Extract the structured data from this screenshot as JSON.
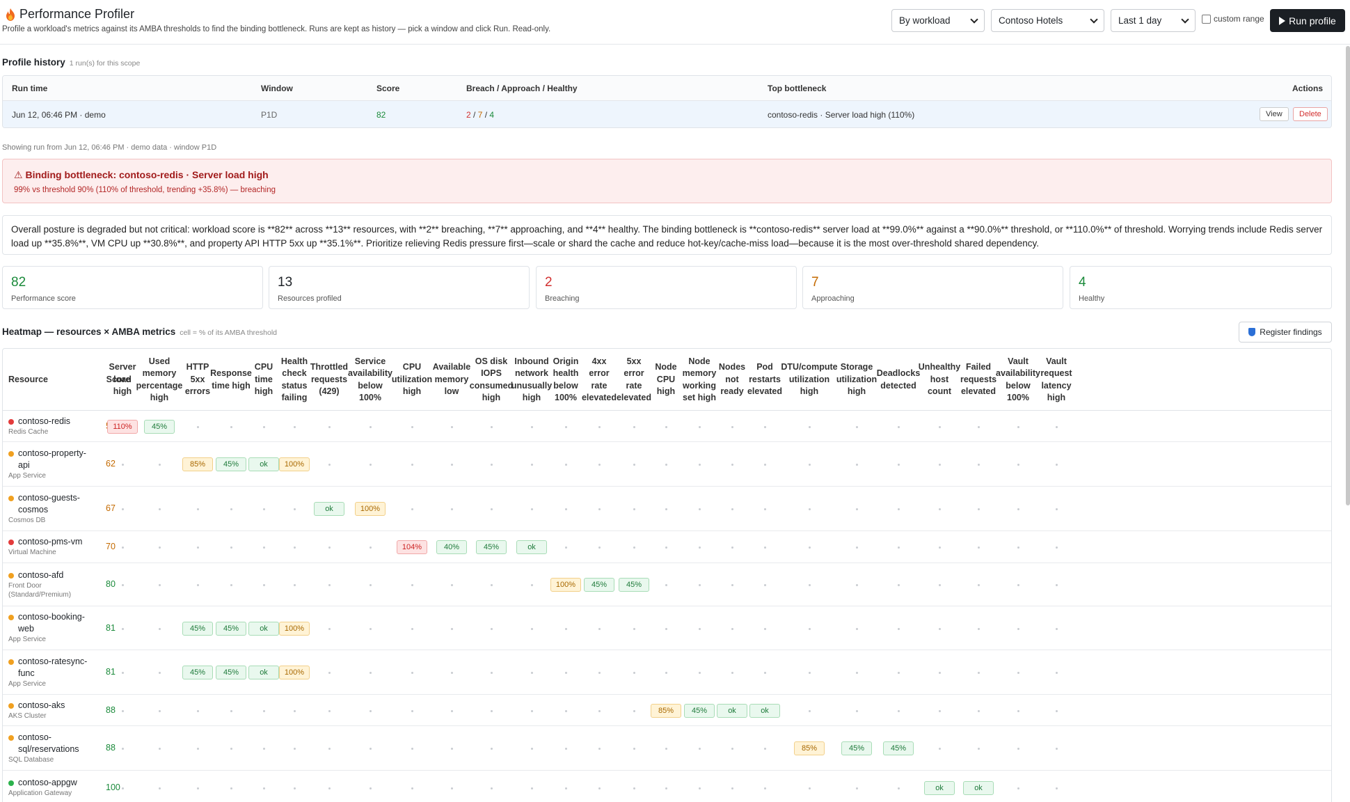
{
  "header": {
    "title": "Performance Profiler",
    "subtitle": "Profile a workload's metrics against its AMBA thresholds to find the binding bottleneck. Runs are kept as history — pick a window and click Run. Read-only.",
    "scope_select": "By workload",
    "workload_select": "Contoso Hotels",
    "window_select": "Last 1 day",
    "custom_range_label": "custom range",
    "run_label": "Run profile"
  },
  "history": {
    "title": "Profile history",
    "note": "1 run(s) for this scope",
    "columns": [
      "Run time",
      "Window",
      "Score",
      "Breach / Approach / Healthy",
      "Top bottleneck",
      "Actions"
    ],
    "row": {
      "run_time": "Jun 12, 06:46 PM · demo",
      "window": "P1D",
      "score": "82",
      "breach": "2",
      "approach": "7",
      "healthy": "4",
      "bottleneck": "contoso-redis · Server load high (110%)",
      "view": "View",
      "delete": "Delete"
    }
  },
  "showing": "Showing run from Jun 12, 06:46 PM · demo data · window P1D",
  "alert": {
    "title": "Binding bottleneck: contoso-redis · Server load high",
    "detail": "99% vs threshold 90% (110% of threshold, trending +35.8%) — breaching"
  },
  "summary": "Overall posture is degraded but not critical: workload score is **82** across **13** resources, with **2** breaching, **7** approaching, and **4** healthy. The binding bottleneck is **contoso-redis** server load at **99.0%** against a **90.0%** threshold, or **110.0%** of threshold. Worrying trends include Redis server load up **35.8%**, VM CPU up **30.8%**, and property API HTTP 5xx up **35.1%**. Prioritize relieving Redis pressure first—scale or shard the cache and reduce hot-key/cache-miss load—because it is the most over-threshold shared dependency.",
  "kpis": [
    {
      "value": "82",
      "label": "Performance score",
      "color": "#1a8a3a"
    },
    {
      "value": "13",
      "label": "Resources profiled",
      "color": "#1f2328"
    },
    {
      "value": "2",
      "label": "Breaching",
      "color": "#d23030"
    },
    {
      "value": "7",
      "label": "Approaching",
      "color": "#c46a00"
    },
    {
      "value": "4",
      "label": "Healthy",
      "color": "#1a8a3a"
    }
  ],
  "heatmap": {
    "title": "Heatmap — resources × AMBA metrics",
    "note": "cell = % of its AMBA threshold",
    "register_label": "Register findings",
    "resource_header": "Resource",
    "score_header": "Score",
    "metrics": [
      "Server load high",
      "Used memory percentage high",
      "HTTP 5xx errors",
      "Response time high",
      "CPU time high",
      "Health check status failing",
      "Throttled requests (429)",
      "Service availability below 100%",
      "CPU utilization high",
      "Available memory low",
      "OS disk IOPS consumed high",
      "Inbound network unusually high",
      "Origin health below 100%",
      "4xx error rate elevated",
      "5xx error rate elevated",
      "Node CPU high",
      "Node memory working set high",
      "Nodes not ready",
      "Pod restarts elevated",
      "DTU/compute utilization high",
      "Storage utilization high",
      "Deadlocks detected",
      "Unhealthy host count",
      "Failed requests elevated",
      "Vault availability below 100%",
      "Vault request latency high"
    ],
    "rows": [
      {
        "name": "contoso-redis",
        "type": "Redis Cache",
        "score": "50",
        "status": "red",
        "cells": {
          "0": [
            "110%",
            "red"
          ],
          "1": [
            "45%",
            "grn"
          ]
        }
      },
      {
        "name": "contoso-property-api",
        "type": "App Service",
        "score": "62",
        "status": "orange",
        "cells": {
          "2": [
            "85%",
            "yel"
          ],
          "3": [
            "45%",
            "grn"
          ],
          "4": [
            "ok",
            "grn"
          ],
          "5": [
            "100%",
            "yel"
          ]
        }
      },
      {
        "name": "contoso-guests-cosmos",
        "type": "Cosmos DB",
        "score": "67",
        "status": "orange",
        "cells": {
          "6": [
            "ok",
            "grn"
          ],
          "7": [
            "100%",
            "yel"
          ]
        }
      },
      {
        "name": "contoso-pms-vm",
        "type": "Virtual Machine",
        "score": "70",
        "status": "red",
        "cells": {
          "8": [
            "104%",
            "red"
          ],
          "9": [
            "40%",
            "grn"
          ],
          "10": [
            "45%",
            "grn"
          ],
          "11": [
            "ok",
            "grn"
          ]
        }
      },
      {
        "name": "contoso-afd",
        "type": "Front Door (Standard/Premium)",
        "score": "80",
        "status": "orange",
        "cells": {
          "12": [
            "100%",
            "yel"
          ],
          "13": [
            "45%",
            "grn"
          ],
          "14": [
            "45%",
            "grn"
          ]
        }
      },
      {
        "name": "contoso-booking-web",
        "type": "App Service",
        "score": "81",
        "status": "orange",
        "cells": {
          "2": [
            "45%",
            "grn"
          ],
          "3": [
            "45%",
            "grn"
          ],
          "4": [
            "ok",
            "grn"
          ],
          "5": [
            "100%",
            "yel"
          ]
        }
      },
      {
        "name": "contoso-ratesync-func",
        "type": "App Service",
        "score": "81",
        "status": "orange",
        "cells": {
          "2": [
            "45%",
            "grn"
          ],
          "3": [
            "45%",
            "grn"
          ],
          "4": [
            "ok",
            "grn"
          ],
          "5": [
            "100%",
            "yel"
          ]
        }
      },
      {
        "name": "contoso-aks",
        "type": "AKS Cluster",
        "score": "88",
        "status": "orange",
        "cells": {
          "15": [
            "85%",
            "yel"
          ],
          "16": [
            "45%",
            "grn"
          ],
          "17": [
            "ok",
            "grn"
          ],
          "18": [
            "ok",
            "grn"
          ]
        }
      },
      {
        "name": "contoso-sql/reservations",
        "type": "SQL Database",
        "score": "88",
        "status": "orange",
        "cells": {
          "19": [
            "85%",
            "yel"
          ],
          "20": [
            "45%",
            "grn"
          ],
          "21": [
            "45%",
            "grn"
          ]
        }
      },
      {
        "name": "contoso-appgw",
        "type": "Application Gateway",
        "score": "100",
        "status": "green",
        "cells": {
          "22": [
            "ok",
            "grn"
          ],
          "23": [
            "ok",
            "grn"
          ]
        }
      }
    ]
  }
}
